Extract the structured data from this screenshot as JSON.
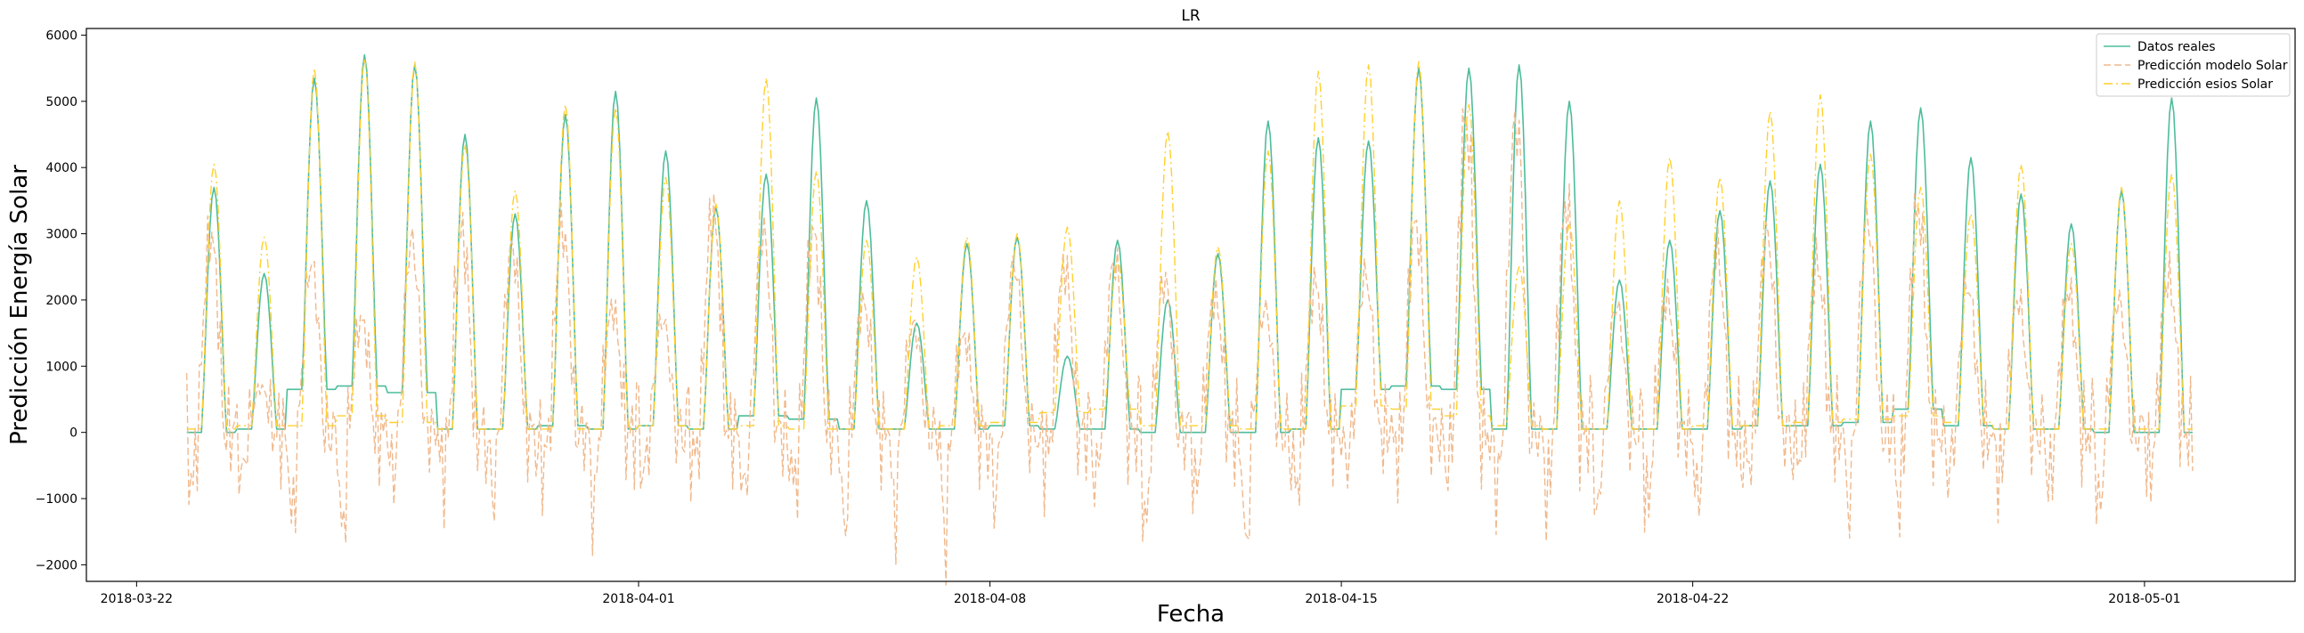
{
  "chart_data": {
    "type": "line",
    "title": "LR",
    "xlabel": "Fecha",
    "ylabel": "Predicción Energía Solar",
    "x_axis": {
      "type": "date",
      "range": [
        "2018-03-21",
        "2018-05-04"
      ],
      "ticks": [
        "2018-03-22",
        "2018-04-01",
        "2018-04-08",
        "2018-04-15",
        "2018-04-22",
        "2018-05-01"
      ]
    },
    "y_axis": {
      "range": [
        -2250,
        6100
      ],
      "ticks": [
        "−2000",
        "−1000",
        "0",
        "1000",
        "2000",
        "3000",
        "4000",
        "5000",
        "6000"
      ]
    },
    "grid": false,
    "legend_position": "top-right",
    "data_start": "2018-03-23",
    "days": [
      "2018-03-23",
      "2018-03-24",
      "2018-03-25",
      "2018-03-26",
      "2018-03-27",
      "2018-03-28",
      "2018-03-29",
      "2018-03-30",
      "2018-03-31",
      "2018-04-01",
      "2018-04-02",
      "2018-04-03",
      "2018-04-04",
      "2018-04-05",
      "2018-04-06",
      "2018-04-07",
      "2018-04-08",
      "2018-04-09",
      "2018-04-10",
      "2018-04-11",
      "2018-04-12",
      "2018-04-13",
      "2018-04-14",
      "2018-04-15",
      "2018-04-16",
      "2018-04-17",
      "2018-04-18",
      "2018-04-19",
      "2018-04-20",
      "2018-04-21",
      "2018-04-22",
      "2018-04-23",
      "2018-04-24",
      "2018-04-25",
      "2018-04-26",
      "2018-04-27",
      "2018-04-28",
      "2018-04-29",
      "2018-04-30",
      "2018-05-01"
    ],
    "series": [
      {
        "name": "Datos reales",
        "color": "#4dbd9c",
        "style": "solid",
        "daily_peak": [
          3700,
          2400,
          5350,
          5700,
          5550,
          4500,
          3300,
          4800,
          5150,
          4250,
          3400,
          3900,
          5050,
          3500,
          1650,
          2850,
          2950,
          1150,
          2900,
          2000,
          2700,
          4700,
          4450,
          4400,
          5500,
          5500,
          5550,
          5000,
          2300,
          2900,
          3350,
          3800,
          4050,
          4700,
          4900,
          4150,
          3600,
          3150,
          3650,
          5050
        ],
        "daily_min": [
          0,
          50,
          650,
          700,
          600,
          50,
          50,
          100,
          50,
          100,
          50,
          250,
          200,
          50,
          50,
          50,
          100,
          50,
          50,
          0,
          0,
          0,
          50,
          650,
          700,
          650,
          50,
          50,
          50,
          50,
          50,
          100,
          100,
          150,
          350,
          100,
          50,
          50,
          0,
          0
        ]
      },
      {
        "name": "Predicción modelo Solar",
        "color": "#f0b98d",
        "style": "dashed",
        "daily_peak": [
          3500,
          800,
          3000,
          2000,
          3400,
          3550,
          3300,
          3650,
          2200,
          2000,
          3900,
          3550,
          3550,
          2300,
          1900,
          1700,
          3000,
          2950,
          3050,
          2700,
          2400,
          2200,
          2650,
          2800,
          3700,
          5550,
          5550,
          4000,
          2250,
          2400,
          3200,
          3500,
          3000,
          3800,
          4000,
          2600,
          2350,
          2500,
          2350,
          2750
        ],
        "daily_min": [
          -800,
          -700,
          -1350,
          -1600,
          -650,
          -600,
          -950,
          -500,
          -1200,
          -650,
          -400,
          -950,
          -850,
          -1550,
          -1300,
          -1650,
          -1000,
          -400,
          -750,
          -1500,
          -900,
          -1850,
          -850,
          -450,
          -300,
          -550,
          -850,
          -1000,
          -1300,
          -1150,
          -1100,
          -500,
          -350,
          -1150,
          -1100,
          -650,
          -700,
          -800,
          -1250,
          -600
        ]
      },
      {
        "name": "Predicción esios Solar",
        "color": "#ffd02e",
        "style": "dashdot",
        "daily_peak": [
          4050,
          2950,
          5500,
          5650,
          5600,
          4350,
          3650,
          4950,
          4900,
          3850,
          3450,
          5350,
          3950,
          2900,
          2650,
          2950,
          3000,
          3100,
          2600,
          4550,
          2800,
          4250,
          5450,
          5550,
          5600,
          4950,
          2500,
          3150,
          3500,
          4150,
          3850,
          4850,
          5100,
          4200,
          3700,
          3300,
          4050,
          2850,
          3700,
          3900
        ],
        "daily_min": [
          50,
          100,
          100,
          250,
          150,
          50,
          50,
          50,
          50,
          100,
          50,
          100,
          50,
          50,
          50,
          100,
          150,
          300,
          350,
          100,
          100,
          50,
          50,
          400,
          350,
          250,
          100,
          50,
          50,
          50,
          100,
          100,
          150,
          200,
          250,
          150,
          50,
          50,
          50,
          50
        ]
      }
    ]
  }
}
